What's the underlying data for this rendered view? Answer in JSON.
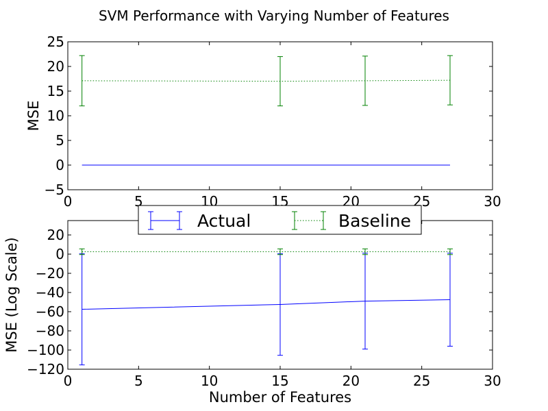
{
  "figure": {
    "title": "SVM Performance with Varying Number of Features"
  },
  "legend": {
    "placement": "upper-center",
    "entries": [
      {
        "label": "Actual",
        "color": "#0000ff",
        "style": "solid"
      },
      {
        "label": "Baseline",
        "color": "#008000",
        "style": "dotted"
      }
    ]
  },
  "chart_data": [
    {
      "type": "line",
      "subtype": "errorbar",
      "title": "",
      "xlabel": "",
      "ylabel": "MSE",
      "xlim": [
        0,
        30
      ],
      "ylim": [
        -5,
        25
      ],
      "xticks": [
        0,
        5,
        10,
        15,
        20,
        25,
        30
      ],
      "yticks": [
        -5,
        0,
        5,
        10,
        15,
        20,
        25
      ],
      "grid": false,
      "series": [
        {
          "name": "Actual",
          "color": "#0000ff",
          "style": "solid",
          "x": [
            1,
            15,
            21,
            27
          ],
          "y": [
            0.0,
            0.0,
            0.0,
            0.0
          ],
          "err": [
            0.0,
            0.0,
            0.0,
            0.0
          ]
        },
        {
          "name": "Baseline",
          "color": "#008000",
          "style": "dotted",
          "x": [
            1,
            15,
            21,
            27
          ],
          "y": [
            17.1,
            17.0,
            17.1,
            17.2
          ],
          "err": [
            5.1,
            5.0,
            5.0,
            5.0
          ]
        }
      ]
    },
    {
      "type": "line",
      "subtype": "errorbar",
      "title": "",
      "xlabel": "Number of Features",
      "ylabel": "MSE (Log Scale)",
      "xlim": [
        0,
        30
      ],
      "ylim": [
        -120,
        35
      ],
      "xticks": [
        0,
        5,
        10,
        15,
        20,
        25,
        30
      ],
      "yticks": [
        -120,
        -100,
        -80,
        -60,
        -40,
        -20,
        0,
        20
      ],
      "grid": false,
      "series": [
        {
          "name": "Actual",
          "color": "#0000ff",
          "style": "solid",
          "x": [
            1,
            15,
            21,
            27
          ],
          "y": [
            -57.5,
            -52.5,
            -49.0,
            -47.5
          ],
          "err": [
            58.0,
            53.0,
            50.0,
            48.5
          ]
        },
        {
          "name": "Baseline",
          "color": "#008000",
          "style": "dotted",
          "x": [
            1,
            15,
            21,
            27
          ],
          "y": [
            2.5,
            2.5,
            2.5,
            2.5
          ],
          "err": [
            3.0,
            3.0,
            3.0,
            3.0
          ]
        }
      ]
    }
  ]
}
